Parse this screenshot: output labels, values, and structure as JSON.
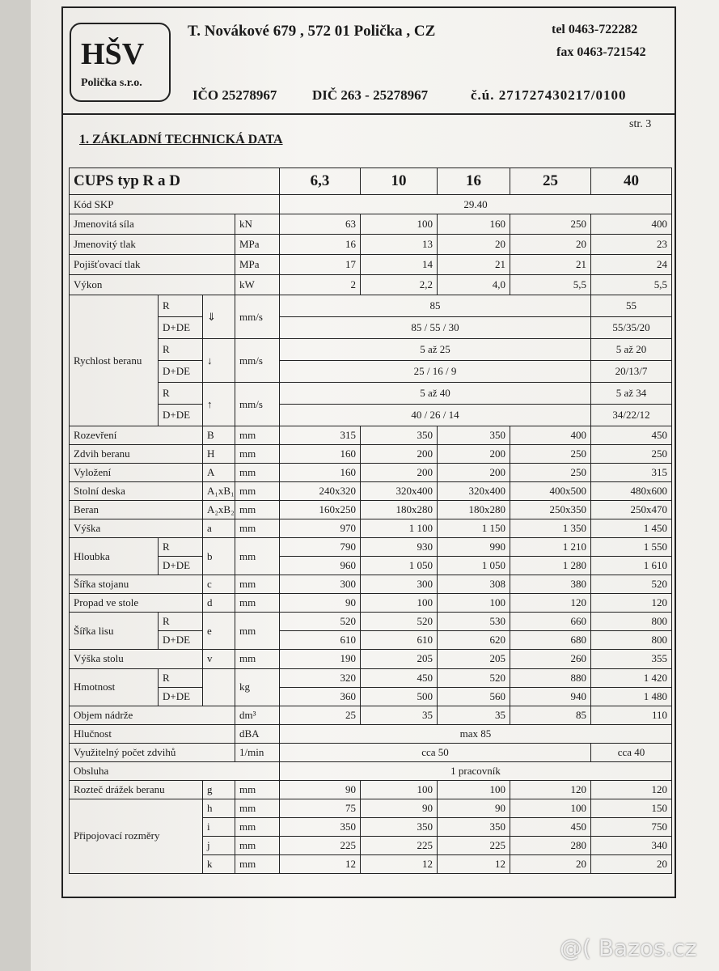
{
  "header": {
    "logo": "HŠV",
    "company": "Polička s.r.o.",
    "address": "T. Novákové 679 ,  572 01 Polička , CZ",
    "tel": "tel 0463-722282",
    "fax": "fax 0463-721542",
    "ico": "IČO 25278967",
    "dic": "DIČ 263 - 25278967",
    "account": "č.ú. 271727430217/0100"
  },
  "page": "str. 3",
  "section_title": "1. ZÁKLADNÍ TECHNICKÁ DATA",
  "table": {
    "title": "CUPS typ R a D",
    "sizes": [
      "6,3",
      "10",
      "16",
      "25",
      "40"
    ],
    "groups": [
      {
        "label": "Kód SKP",
        "rows": [
          {
            "values": [
              "29.40"
            ]
          }
        ]
      },
      {
        "label": "Jmenovitá síla",
        "rows": [
          {
            "unit": "kN",
            "values": [
              "63",
              "100",
              "160",
              "250",
              "400"
            ]
          }
        ]
      },
      {
        "label": "Jmenovitý tlak",
        "rows": [
          {
            "unit": "MPa",
            "values": [
              "16",
              "13",
              "20",
              "20",
              "23"
            ]
          }
        ]
      },
      {
        "label": "Pojišťovací tlak",
        "rows": [
          {
            "unit": "MPa",
            "values": [
              "17",
              "14",
              "21",
              "21",
              "24"
            ]
          }
        ]
      },
      {
        "label": "Výkon",
        "rows": [
          {
            "unit": "kW",
            "values": [
              "2",
              "2,2",
              "4,0",
              "5,5",
              "5,5"
            ]
          }
        ]
      },
      {
        "label": "Rychlost beranu",
        "rows": [
          {
            "sub": "R",
            "symbol": "⇓",
            "unit": "mm/s",
            "values": [
              "85",
              "55"
            ]
          },
          {
            "sub": "D+DE",
            "values": [
              "85 / 55 / 30",
              "55/35/20"
            ]
          },
          {
            "sub": "R",
            "symbol": "↓",
            "unit": "mm/s",
            "values": [
              "5 až 25",
              "5 až 20"
            ]
          },
          {
            "sub": "D+DE",
            "values": [
              "25 / 16 / 9",
              "20/13/7"
            ]
          },
          {
            "sub": "R",
            "symbol": "↑",
            "unit": "mm/s",
            "values": [
              "5 až 40",
              "5 až 34"
            ]
          },
          {
            "sub": "D+DE",
            "values": [
              "40 / 26 / 14",
              "34/22/12"
            ]
          }
        ]
      },
      {
        "label": "Rozevření",
        "rows": [
          {
            "symbol": "B",
            "unit": "mm",
            "values": [
              "315",
              "350",
              "350",
              "400",
              "450"
            ]
          }
        ]
      },
      {
        "label": "Zdvih beranu",
        "rows": [
          {
            "symbol": "H",
            "unit": "mm",
            "values": [
              "160",
              "200",
              "200",
              "250",
              "250"
            ]
          }
        ]
      },
      {
        "label": "Vyložení",
        "rows": [
          {
            "symbol": "A",
            "unit": "mm",
            "values": [
              "160",
              "200",
              "200",
              "250",
              "315"
            ]
          }
        ]
      },
      {
        "label": "Stolní deska",
        "rows": [
          {
            "symbol": "A₁xB₁",
            "unit": "mm",
            "values": [
              "240x320",
              "320x400",
              "320x400",
              "400x500",
              "480x600"
            ]
          }
        ]
      },
      {
        "label": "Beran",
        "rows": [
          {
            "symbol": "A₂xB₂",
            "unit": "mm",
            "values": [
              "160x250",
              "180x280",
              "180x280",
              "250x350",
              "250x470"
            ]
          }
        ]
      },
      {
        "label": "Výška",
        "rows": [
          {
            "symbol": "a",
            "unit": "mm",
            "values": [
              "970",
              "1 100",
              "1 150",
              "1 350",
              "1 450"
            ]
          }
        ]
      },
      {
        "label": "Hloubka",
        "rows": [
          {
            "sub": "R",
            "symbol": "b",
            "unit": "mm",
            "values": [
              "790",
              "930",
              "990",
              "1 210",
              "1 550"
            ]
          },
          {
            "sub": "D+DE",
            "values": [
              "960",
              "1 050",
              "1 050",
              "1 280",
              "1 610"
            ]
          }
        ]
      },
      {
        "label": "Šířka stojanu",
        "rows": [
          {
            "symbol": "c",
            "unit": "mm",
            "values": [
              "300",
              "300",
              "308",
              "380",
              "520"
            ]
          }
        ]
      },
      {
        "label": "Propad ve stole",
        "rows": [
          {
            "symbol": "d",
            "unit": "mm",
            "values": [
              "90",
              "100",
              "100",
              "120",
              "120"
            ]
          }
        ]
      },
      {
        "label": "Šířka lisu",
        "rows": [
          {
            "sub": "R",
            "symbol": "e",
            "unit": "mm",
            "values": [
              "520",
              "520",
              "530",
              "660",
              "800"
            ]
          },
          {
            "sub": "D+DE",
            "values": [
              "610",
              "610",
              "620",
              "680",
              "800"
            ]
          }
        ]
      },
      {
        "label": "Výška stolu",
        "rows": [
          {
            "symbol": "v",
            "unit": "mm",
            "values": [
              "190",
              "205",
              "205",
              "260",
              "355"
            ]
          }
        ]
      },
      {
        "label": "Hmotnost",
        "rows": [
          {
            "sub": "R",
            "unit": "kg",
            "values": [
              "320",
              "450",
              "520",
              "880",
              "1 420"
            ]
          },
          {
            "sub": "D+DE",
            "values": [
              "360",
              "500",
              "560",
              "940",
              "1 480"
            ]
          }
        ]
      },
      {
        "label": "Objem nádrže",
        "rows": [
          {
            "unit": "dm³",
            "values": [
              "25",
              "35",
              "35",
              "85",
              "110"
            ]
          }
        ]
      },
      {
        "label": "Hlučnost",
        "rows": [
          {
            "unit": "dBA",
            "values": [
              "max 85"
            ]
          }
        ]
      },
      {
        "label": "Využitelný počet zdvihů",
        "rows": [
          {
            "unit": "1/min",
            "values": [
              "cca 50",
              "cca 40"
            ]
          }
        ]
      },
      {
        "label": "Obsluha",
        "rows": [
          {
            "values": [
              "1 pracovník"
            ]
          }
        ]
      },
      {
        "label": "Rozteč drážek beranu",
        "rows": [
          {
            "symbol": "g",
            "unit": "mm",
            "values": [
              "90",
              "100",
              "100",
              "120",
              "120"
            ]
          }
        ]
      },
      {
        "label": "Připojovací rozměry",
        "rows": [
          {
            "symbol": "h",
            "unit": "mm",
            "values": [
              "75",
              "90",
              "90",
              "100",
              "150"
            ]
          },
          {
            "symbol": "i",
            "unit": "mm",
            "values": [
              "350",
              "350",
              "350",
              "450",
              "750"
            ]
          },
          {
            "symbol": "j",
            "unit": "mm",
            "values": [
              "225",
              "225",
              "225",
              "280",
              "340"
            ]
          },
          {
            "symbol": "k",
            "unit": "mm",
            "values": [
              "12",
              "12",
              "12",
              "20",
              "20"
            ]
          }
        ]
      }
    ]
  },
  "watermark": "@( Bazos.cz"
}
